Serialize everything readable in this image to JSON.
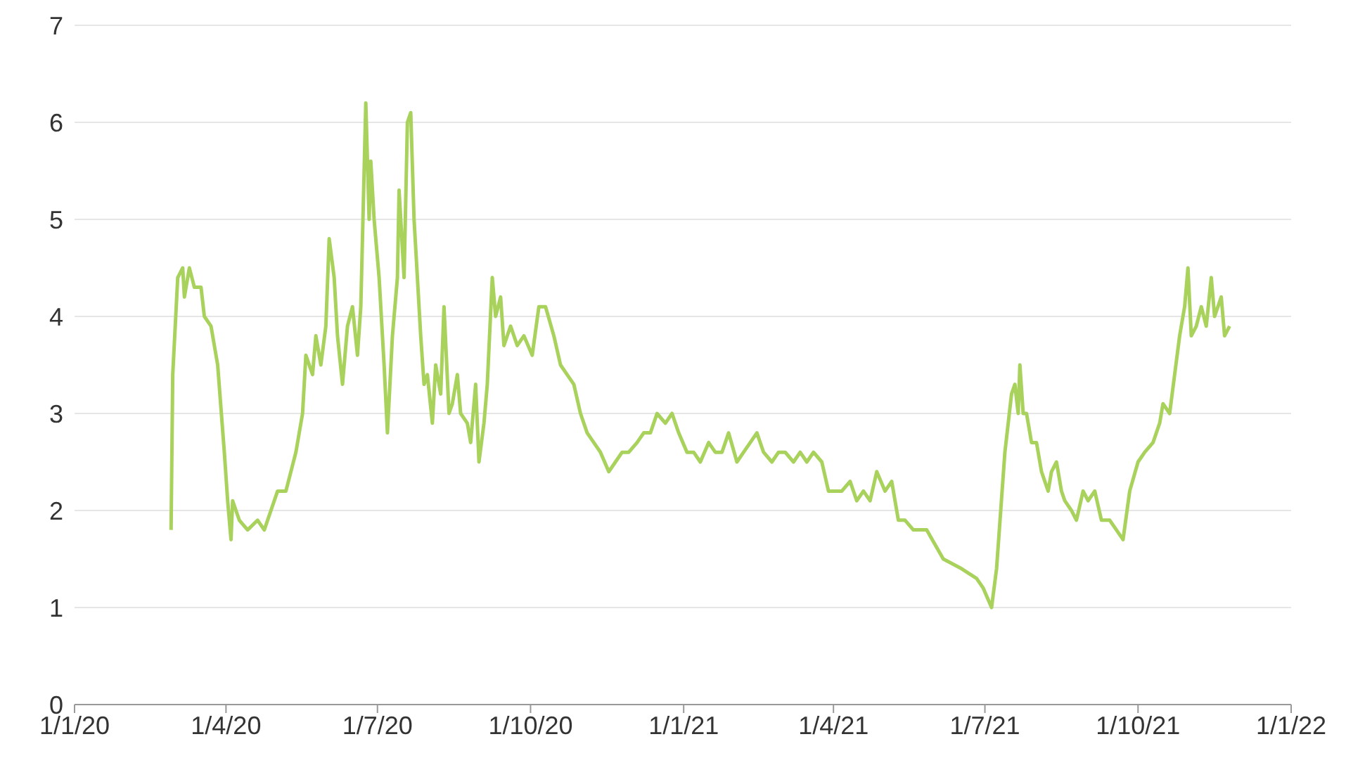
{
  "chart_data": {
    "type": "line",
    "xlim": [
      "2020-01-01",
      "2022-01-01"
    ],
    "xticks": [
      {
        "value": "2020-01-01",
        "label": "1/1/20"
      },
      {
        "value": "2020-04-01",
        "label": "1/4/20"
      },
      {
        "value": "2020-07-01",
        "label": "1/7/20"
      },
      {
        "value": "2020-10-01",
        "label": "1/10/20"
      },
      {
        "value": "2021-01-01",
        "label": "1/1/21"
      },
      {
        "value": "2021-04-01",
        "label": "1/4/21"
      },
      {
        "value": "2021-07-01",
        "label": "1/7/21"
      },
      {
        "value": "2021-10-01",
        "label": "1/10/21"
      },
      {
        "value": "2022-01-01",
        "label": "1/1/22"
      }
    ],
    "ylim": [
      0,
      7
    ],
    "yticks": [
      0,
      1,
      2,
      3,
      4,
      5,
      6,
      7
    ],
    "grid": "y",
    "legend": false,
    "marker": "none",
    "line_style": "solid",
    "x": [
      "2020-02-28",
      "2020-02-29",
      "2020-03-03",
      "2020-03-06",
      "2020-03-07",
      "2020-03-10",
      "2020-03-13",
      "2020-03-17",
      "2020-03-19",
      "2020-03-23",
      "2020-03-27",
      "2020-03-31",
      "2020-04-02",
      "2020-04-04",
      "2020-04-05",
      "2020-04-09",
      "2020-04-14",
      "2020-04-20",
      "2020-04-24",
      "2020-04-28",
      "2020-05-02",
      "2020-05-07",
      "2020-05-13",
      "2020-05-17",
      "2020-05-19",
      "2020-05-23",
      "2020-05-25",
      "2020-05-28",
      "2020-05-31",
      "2020-06-02",
      "2020-06-05",
      "2020-06-07",
      "2020-06-10",
      "2020-06-13",
      "2020-06-16",
      "2020-06-19",
      "2020-06-21",
      "2020-06-24",
      "2020-06-26",
      "2020-06-27",
      "2020-06-29",
      "2020-07-02",
      "2020-07-05",
      "2020-07-07",
      "2020-07-10",
      "2020-07-13",
      "2020-07-14",
      "2020-07-17",
      "2020-07-19",
      "2020-07-21",
      "2020-07-23",
      "2020-07-24",
      "2020-07-27",
      "2020-07-29",
      "2020-07-31",
      "2020-08-03",
      "2020-08-05",
      "2020-08-08",
      "2020-08-10",
      "2020-08-13",
      "2020-08-15",
      "2020-08-18",
      "2020-08-20",
      "2020-08-24",
      "2020-08-26",
      "2020-08-29",
      "2020-08-31",
      "2020-09-03",
      "2020-09-05",
      "2020-09-08",
      "2020-09-10",
      "2020-09-13",
      "2020-09-15",
      "2020-09-19",
      "2020-09-23",
      "2020-09-27",
      "2020-10-02",
      "2020-10-06",
      "2020-10-10",
      "2020-10-15",
      "2020-10-19",
      "2020-10-23",
      "2020-10-27",
      "2020-10-31",
      "2020-11-04",
      "2020-11-08",
      "2020-11-12",
      "2020-11-17",
      "2020-11-21",
      "2020-11-25",
      "2020-11-29",
      "2020-12-04",
      "2020-12-08",
      "2020-12-12",
      "2020-12-16",
      "2020-12-21",
      "2020-12-25",
      "2020-12-29",
      "2021-01-03",
      "2021-01-07",
      "2021-01-11",
      "2021-01-16",
      "2021-01-20",
      "2021-01-24",
      "2021-01-28",
      "2021-02-02",
      "2021-02-06",
      "2021-02-10",
      "2021-02-14",
      "2021-02-18",
      "2021-02-23",
      "2021-02-27",
      "2021-03-03",
      "2021-03-08",
      "2021-03-12",
      "2021-03-16",
      "2021-03-20",
      "2021-03-25",
      "2021-03-29",
      "2021-04-02",
      "2021-04-06",
      "2021-04-11",
      "2021-04-15",
      "2021-04-19",
      "2021-04-23",
      "2021-04-27",
      "2021-05-02",
      "2021-05-06",
      "2021-05-10",
      "2021-05-14",
      "2021-05-19",
      "2021-05-27",
      "2021-06-06",
      "2021-06-17",
      "2021-06-26",
      "2021-06-30",
      "2021-07-05",
      "2021-07-08",
      "2021-07-13",
      "2021-07-17",
      "2021-07-19",
      "2021-07-21",
      "2021-07-22",
      "2021-07-24",
      "2021-07-26",
      "2021-07-29",
      "2021-08-01",
      "2021-08-04",
      "2021-08-08",
      "2021-08-10",
      "2021-08-13",
      "2021-08-16",
      "2021-08-18",
      "2021-08-22",
      "2021-08-25",
      "2021-08-29",
      "2021-09-01",
      "2021-09-05",
      "2021-09-09",
      "2021-09-14",
      "2021-09-22",
      "2021-09-26",
      "2021-10-01",
      "2021-10-05",
      "2021-10-10",
      "2021-10-14",
      "2021-10-16",
      "2021-10-20",
      "2021-10-23",
      "2021-10-26",
      "2021-10-29",
      "2021-10-31",
      "2021-11-02",
      "2021-11-05",
      "2021-11-08",
      "2021-11-11",
      "2021-11-14",
      "2021-11-16",
      "2021-11-20",
      "2021-11-22",
      "2021-11-25"
    ],
    "series": [
      {
        "color": "#a8d25c",
        "values": [
          1.8,
          3.4,
          4.4,
          4.5,
          4.2,
          4.5,
          4.3,
          4.3,
          4.0,
          3.9,
          3.5,
          2.6,
          2.1,
          1.7,
          2.1,
          1.9,
          1.8,
          1.9,
          1.8,
          2.0,
          2.2,
          2.2,
          2.6,
          3.0,
          3.6,
          3.4,
          3.8,
          3.5,
          3.9,
          4.8,
          4.4,
          3.8,
          3.3,
          3.9,
          4.1,
          3.6,
          4.1,
          6.2,
          5.0,
          5.6,
          5.0,
          4.4,
          3.5,
          2.8,
          3.8,
          4.4,
          5.3,
          4.4,
          6.0,
          6.1,
          5.0,
          4.7,
          3.8,
          3.3,
          3.4,
          2.9,
          3.5,
          3.2,
          4.1,
          3.0,
          3.1,
          3.4,
          3.0,
          2.9,
          2.7,
          3.3,
          2.5,
          2.9,
          3.3,
          4.4,
          4.0,
          4.2,
          3.7,
          3.9,
          3.7,
          3.8,
          3.6,
          4.1,
          4.1,
          3.8,
          3.5,
          3.4,
          3.3,
          3.0,
          2.8,
          2.7,
          2.6,
          2.4,
          2.5,
          2.6,
          2.6,
          2.7,
          2.8,
          2.8,
          3.0,
          2.9,
          3.0,
          2.8,
          2.6,
          2.6,
          2.5,
          2.7,
          2.6,
          2.6,
          2.8,
          2.5,
          2.6,
          2.7,
          2.8,
          2.6,
          2.5,
          2.6,
          2.6,
          2.5,
          2.6,
          2.5,
          2.6,
          2.5,
          2.2,
          2.2,
          2.2,
          2.3,
          2.1,
          2.2,
          2.1,
          2.4,
          2.2,
          2.3,
          1.9,
          1.9,
          1.8,
          1.8,
          1.5,
          1.4,
          1.3,
          1.2,
          1.0,
          1.4,
          2.6,
          3.2,
          3.3,
          3.0,
          3.5,
          3.0,
          3.0,
          2.7,
          2.7,
          2.4,
          2.2,
          2.4,
          2.5,
          2.2,
          2.1,
          2.0,
          1.9,
          2.2,
          2.1,
          2.2,
          1.9,
          1.9,
          1.7,
          2.2,
          2.5,
          2.6,
          2.7,
          2.9,
          3.1,
          3.0,
          3.4,
          3.8,
          4.1,
          4.5,
          3.8,
          3.9,
          4.1,
          3.9,
          4.4,
          4.0,
          4.2,
          3.8,
          3.9
        ]
      }
    ]
  }
}
